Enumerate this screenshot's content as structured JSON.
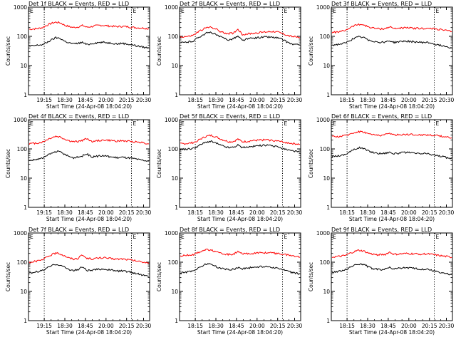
{
  "figure": {
    "background": "#ffffff"
  },
  "chart_data": [
    {
      "type": "line",
      "title": "Det 1f BLACK = Events, RED = LLD",
      "xlabel": "Start Time (24-Apr-08 18:04:20)",
      "ylabel": "Counts/sec",
      "y_scale": "log",
      "ylim": [
        1,
        1000
      ],
      "y_tick_labels": [
        "1",
        "10",
        "100",
        "1000"
      ],
      "x_tick_labels": [
        "19:15",
        "18:30",
        "18:45",
        "20:00",
        "20:15",
        "20:30"
      ],
      "markers": [
        "E",
        "E"
      ],
      "grid": false,
      "series": [
        {
          "name": "LLD",
          "color": "#ff0000",
          "values": [
            175,
            180,
            185,
            200,
            240,
            280,
            305,
            290,
            240,
            215,
            200,
            210,
            235,
            205,
            215,
            230,
            240,
            235,
            225,
            220,
            215,
            220,
            215,
            205,
            200,
            195,
            190,
            180
          ]
        },
        {
          "name": "Events",
          "color": "#000000",
          "values": [
            45,
            48,
            50,
            52,
            62,
            75,
            90,
            85,
            68,
            60,
            55,
            58,
            62,
            52,
            56,
            60,
            62,
            62,
            60,
            58,
            55,
            58,
            55,
            52,
            48,
            45,
            42,
            40
          ]
        }
      ]
    },
    {
      "type": "line",
      "title": "Det 2f BLACK = Events, RED = LLD",
      "xlabel": "Start Time (24-Apr-08 18:04:20)",
      "ylabel": "Counts/sec",
      "y_scale": "log",
      "ylim": [
        1,
        1000
      ],
      "y_tick_labels": [
        "1",
        "10",
        "100",
        "1000"
      ],
      "x_tick_labels": [
        "18:15",
        "18:30",
        "18:45",
        "20:00",
        "20:15",
        "20:30"
      ],
      "markers": [
        "E",
        "E"
      ],
      "grid": false,
      "series": [
        {
          "name": "LLD",
          "color": "#ff0000",
          "values": [
            95,
            98,
            100,
            110,
            140,
            170,
            200,
            205,
            180,
            145,
            130,
            125,
            130,
            175,
            115,
            120,
            125,
            130,
            135,
            140,
            145,
            148,
            140,
            125,
            110,
            100,
            95,
            90
          ]
        },
        {
          "name": "Events",
          "color": "#000000",
          "values": [
            60,
            62,
            65,
            70,
            90,
            110,
            130,
            135,
            115,
            95,
            85,
            75,
            85,
            100,
            72,
            80,
            85,
            88,
            92,
            95,
            95,
            92,
            88,
            78,
            65,
            55,
            52,
            50
          ]
        }
      ]
    },
    {
      "type": "line",
      "title": "Det 3f BLACK = Events, RED = LLD",
      "xlabel": "Start Time (24-Apr-08 18:04:20)",
      "ylabel": "Counts/sec",
      "y_scale": "log",
      "ylim": [
        1,
        1000
      ],
      "y_tick_labels": [
        "1",
        "10",
        "100",
        "1000"
      ],
      "x_tick_labels": [
        "18:15",
        "18:30",
        "18:45",
        "20:00",
        "20:15",
        "20:30"
      ],
      "markers": [
        "E",
        "E"
      ],
      "grid": false,
      "series": [
        {
          "name": "LLD",
          "color": "#ff0000",
          "values": [
            135,
            140,
            145,
            160,
            195,
            230,
            260,
            250,
            215,
            195,
            185,
            180,
            185,
            210,
            185,
            190,
            195,
            195,
            190,
            188,
            185,
            188,
            185,
            180,
            175,
            165,
            155,
            145
          ]
        },
        {
          "name": "Events",
          "color": "#000000",
          "values": [
            50,
            52,
            55,
            58,
            72,
            85,
            95,
            92,
            78,
            70,
            65,
            62,
            65,
            70,
            62,
            65,
            68,
            68,
            66,
            64,
            62,
            62,
            60,
            55,
            50,
            48,
            44,
            40
          ]
        }
      ]
    },
    {
      "type": "line",
      "title": "Det 4f BLACK = Events, RED = LLD",
      "xlabel": "Start Time (24-Apr-08 18:04:20)",
      "ylabel": "Counts/sec",
      "y_scale": "log",
      "ylim": [
        1,
        1000
      ],
      "y_tick_labels": [
        "1",
        "10",
        "100",
        "1000"
      ],
      "x_tick_labels": [
        "19:15",
        "18:30",
        "18:45",
        "20:00",
        "20:15",
        "20:30"
      ],
      "markers": [
        "E",
        "E"
      ],
      "grid": false,
      "series": [
        {
          "name": "LLD",
          "color": "#ff0000",
          "values": [
            150,
            155,
            160,
            170,
            205,
            240,
            270,
            255,
            215,
            190,
            175,
            180,
            195,
            230,
            180,
            185,
            195,
            200,
            195,
            190,
            185,
            190,
            185,
            180,
            175,
            170,
            160,
            150
          ]
        },
        {
          "name": "Events",
          "color": "#000000",
          "values": [
            40,
            42,
            45,
            48,
            58,
            70,
            82,
            78,
            65,
            55,
            50,
            52,
            58,
            68,
            52,
            55,
            58,
            58,
            55,
            52,
            50,
            52,
            50,
            48,
            45,
            42,
            40,
            38
          ]
        }
      ]
    },
    {
      "type": "line",
      "title": "Det 5f BLACK = Events, RED = LLD",
      "xlabel": "Start Time (24-Apr-08 18:04:20)",
      "ylabel": "Counts/sec",
      "y_scale": "log",
      "ylim": [
        1,
        1000
      ],
      "y_tick_labels": [
        "1",
        "10",
        "100",
        "1000"
      ],
      "x_tick_labels": [
        "18:15",
        "18:30",
        "18:45",
        "20:00",
        "20:15",
        "20:30"
      ],
      "markers": [
        "E",
        "E"
      ],
      "grid": false,
      "series": [
        {
          "name": "LLD",
          "color": "#ff0000",
          "values": [
            150,
            152,
            155,
            165,
            195,
            235,
            275,
            290,
            260,
            220,
            195,
            175,
            180,
            215,
            175,
            180,
            190,
            195,
            200,
            205,
            200,
            195,
            185,
            175,
            165,
            155,
            150,
            145
          ]
        },
        {
          "name": "Events",
          "color": "#000000",
          "values": [
            95,
            98,
            100,
            105,
            125,
            150,
            175,
            180,
            160,
            135,
            120,
            110,
            115,
            135,
            110,
            115,
            120,
            125,
            130,
            135,
            130,
            125,
            115,
            105,
            95,
            88,
            82,
            78
          ]
        }
      ]
    },
    {
      "type": "line",
      "title": "Det 6f BLACK = Events, RED = LLD",
      "xlabel": "Start Time (24-Apr-08 18:04:20)",
      "ylabel": "Counts/sec",
      "y_scale": "log",
      "ylim": [
        1,
        1000
      ],
      "y_tick_labels": [
        "1",
        "10",
        "100",
        "1000"
      ],
      "x_tick_labels": [
        "18:15",
        "18:30",
        "18:45",
        "20:00",
        "20:15",
        "20:30"
      ],
      "markers": [
        "E",
        "E"
      ],
      "grid": false,
      "series": [
        {
          "name": "LLD",
          "color": "#ff0000",
          "values": [
            260,
            265,
            270,
            285,
            320,
            360,
            395,
            385,
            340,
            310,
            300,
            295,
            305,
            345,
            300,
            305,
            310,
            315,
            310,
            305,
            300,
            305,
            300,
            290,
            280,
            270,
            255,
            240
          ]
        },
        {
          "name": "Events",
          "color": "#000000",
          "values": [
            55,
            58,
            60,
            65,
            80,
            95,
            110,
            105,
            88,
            78,
            72,
            70,
            72,
            78,
            68,
            72,
            75,
            75,
            72,
            70,
            68,
            70,
            66,
            62,
            58,
            54,
            50,
            46
          ]
        }
      ]
    },
    {
      "type": "line",
      "title": "Det 7f BLACK = Events, RED = LLD",
      "xlabel": "Start Time (24-Apr-08 18:04:20)",
      "ylabel": "Counts/sec",
      "y_scale": "log",
      "ylim": [
        1,
        1000
      ],
      "y_tick_labels": [
        "1",
        "10",
        "100",
        "1000"
      ],
      "x_tick_labels": [
        "19:15",
        "18:30",
        "18:45",
        "20:00",
        "20:15",
        "20:30"
      ],
      "markers": [
        "E",
        "E"
      ],
      "grid": false,
      "series": [
        {
          "name": "LLD",
          "color": "#ff0000",
          "values": [
            100,
            105,
            110,
            120,
            150,
            180,
            205,
            195,
            165,
            140,
            130,
            135,
            175,
            135,
            130,
            135,
            140,
            140,
            135,
            130,
            128,
            130,
            125,
            118,
            112,
            105,
            100,
            95
          ]
        },
        {
          "name": "Events",
          "color": "#000000",
          "values": [
            42,
            45,
            48,
            52,
            62,
            75,
            85,
            80,
            66,
            56,
            52,
            55,
            70,
            52,
            52,
            55,
            58,
            58,
            55,
            52,
            50,
            50,
            48,
            45,
            42,
            38,
            35,
            33
          ]
        }
      ]
    },
    {
      "type": "line",
      "title": "Det 8f BLACK = Events, RED = LLD",
      "xlabel": "Start Time (24-Apr-08 18:04:20)",
      "ylabel": "Counts/sec",
      "y_scale": "log",
      "ylim": [
        1,
        1000
      ],
      "y_tick_labels": [
        "1",
        "10",
        "100",
        "1000"
      ],
      "x_tick_labels": [
        "18:15",
        "18:30",
        "18:45",
        "20:00",
        "20:15",
        "20:30"
      ],
      "markers": [
        "E",
        "E"
      ],
      "grid": false,
      "series": [
        {
          "name": "LLD",
          "color": "#ff0000",
          "values": [
            165,
            170,
            175,
            185,
            215,
            245,
            270,
            260,
            225,
            200,
            190,
            185,
            190,
            225,
            190,
            195,
            200,
            205,
            210,
            212,
            210,
            205,
            200,
            190,
            180,
            170,
            160,
            150
          ]
        },
        {
          "name": "Events",
          "color": "#000000",
          "values": [
            42,
            45,
            48,
            52,
            62,
            75,
            88,
            85,
            72,
            62,
            58,
            56,
            58,
            66,
            60,
            63,
            66,
            68,
            70,
            72,
            70,
            66,
            62,
            56,
            50,
            45,
            42,
            40
          ]
        }
      ]
    },
    {
      "type": "line",
      "title": "Det 9f BLACK = Events, RED = LLD",
      "xlabel": "Start Time (24-Apr-08 18:04:20)",
      "ylabel": "Counts/sec",
      "y_scale": "log",
      "ylim": [
        1,
        1000
      ],
      "y_tick_labels": [
        "1",
        "10",
        "100",
        "1000"
      ],
      "x_tick_labels": [
        "18:15",
        "18:30",
        "18:45",
        "20:00",
        "20:15",
        "20:30"
      ],
      "markers": [
        "E",
        "E"
      ],
      "grid": false,
      "series": [
        {
          "name": "LLD",
          "color": "#ff0000",
          "values": [
            150,
            155,
            160,
            170,
            200,
            230,
            255,
            245,
            210,
            190,
            182,
            180,
            185,
            220,
            185,
            190,
            195,
            198,
            195,
            192,
            190,
            192,
            188,
            180,
            170,
            162,
            155,
            148
          ]
        },
        {
          "name": "Events",
          "color": "#000000",
          "values": [
            45,
            48,
            50,
            55,
            66,
            78,
            88,
            85,
            72,
            62,
            58,
            56,
            58,
            66,
            58,
            62,
            64,
            64,
            62,
            60,
            58,
            58,
            55,
            50,
            46,
            42,
            40,
            38
          ]
        }
      ]
    }
  ]
}
